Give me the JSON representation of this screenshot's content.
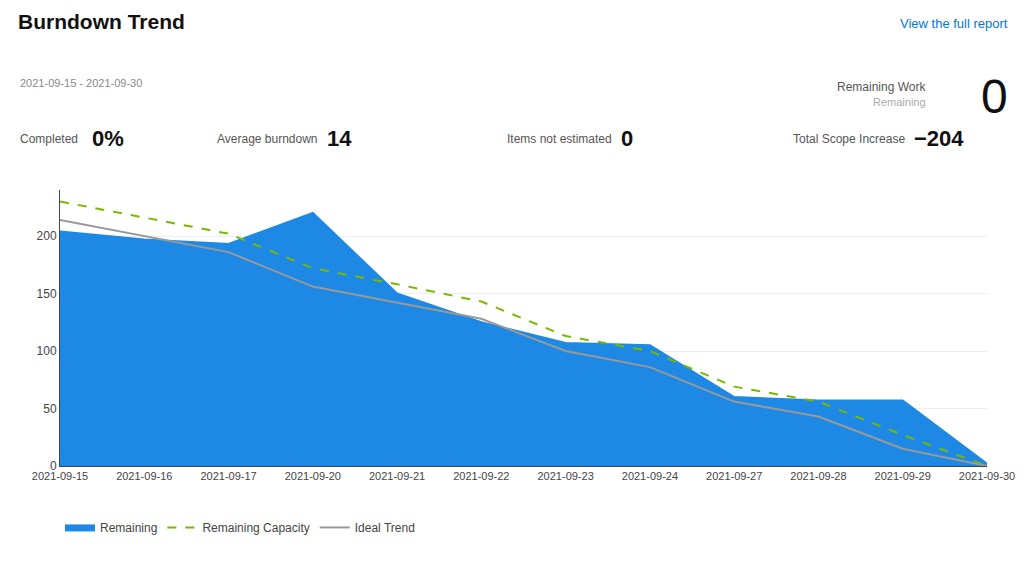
{
  "chart_data": {
    "type": "line",
    "title": "Burndown Trend",
    "subtitle": "2021-09-15 - 2021-09-30",
    "annotations": [
      "View the full report",
      "Completed",
      "0%",
      "Average burndown",
      "14",
      "Items not estimated",
      "0",
      "Remaining Work",
      "Remaining",
      "0",
      "Total Scope Increase",
      "−204"
    ],
    "categories": [
      "2021-09-15",
      "2021-09-16",
      "2021-09-17",
      "2021-09-20",
      "2021-09-21",
      "2021-09-22",
      "2021-09-23",
      "2021-09-24",
      "2021-09-27",
      "2021-09-28",
      "2021-09-29",
      "2021-09-30"
    ],
    "series": [
      {
        "name": "Remaining",
        "type": "area",
        "color": "#1e88e5",
        "line_style": "solid",
        "values": [
          204,
          197,
          193,
          220,
          150,
          125,
          107,
          105,
          60,
          57,
          57,
          2
        ]
      },
      {
        "name": "Remaining Capacity",
        "type": "line",
        "color": "#76b900",
        "line_style": "dashed",
        "values": [
          230,
          216,
          202,
          172,
          158,
          143,
          113,
          100,
          69,
          56,
          27,
          0
        ]
      },
      {
        "name": "Ideal Trend",
        "type": "line",
        "color": "#999999",
        "line_style": "solid",
        "values": [
          214,
          200,
          186,
          156,
          142,
          128,
          100,
          86,
          56,
          43,
          15,
          0
        ]
      }
    ],
    "ylim": [
      0,
      240
    ],
    "yticks": [
      0,
      50,
      100,
      150,
      200
    ],
    "grid": true,
    "legend": "bottom"
  }
}
